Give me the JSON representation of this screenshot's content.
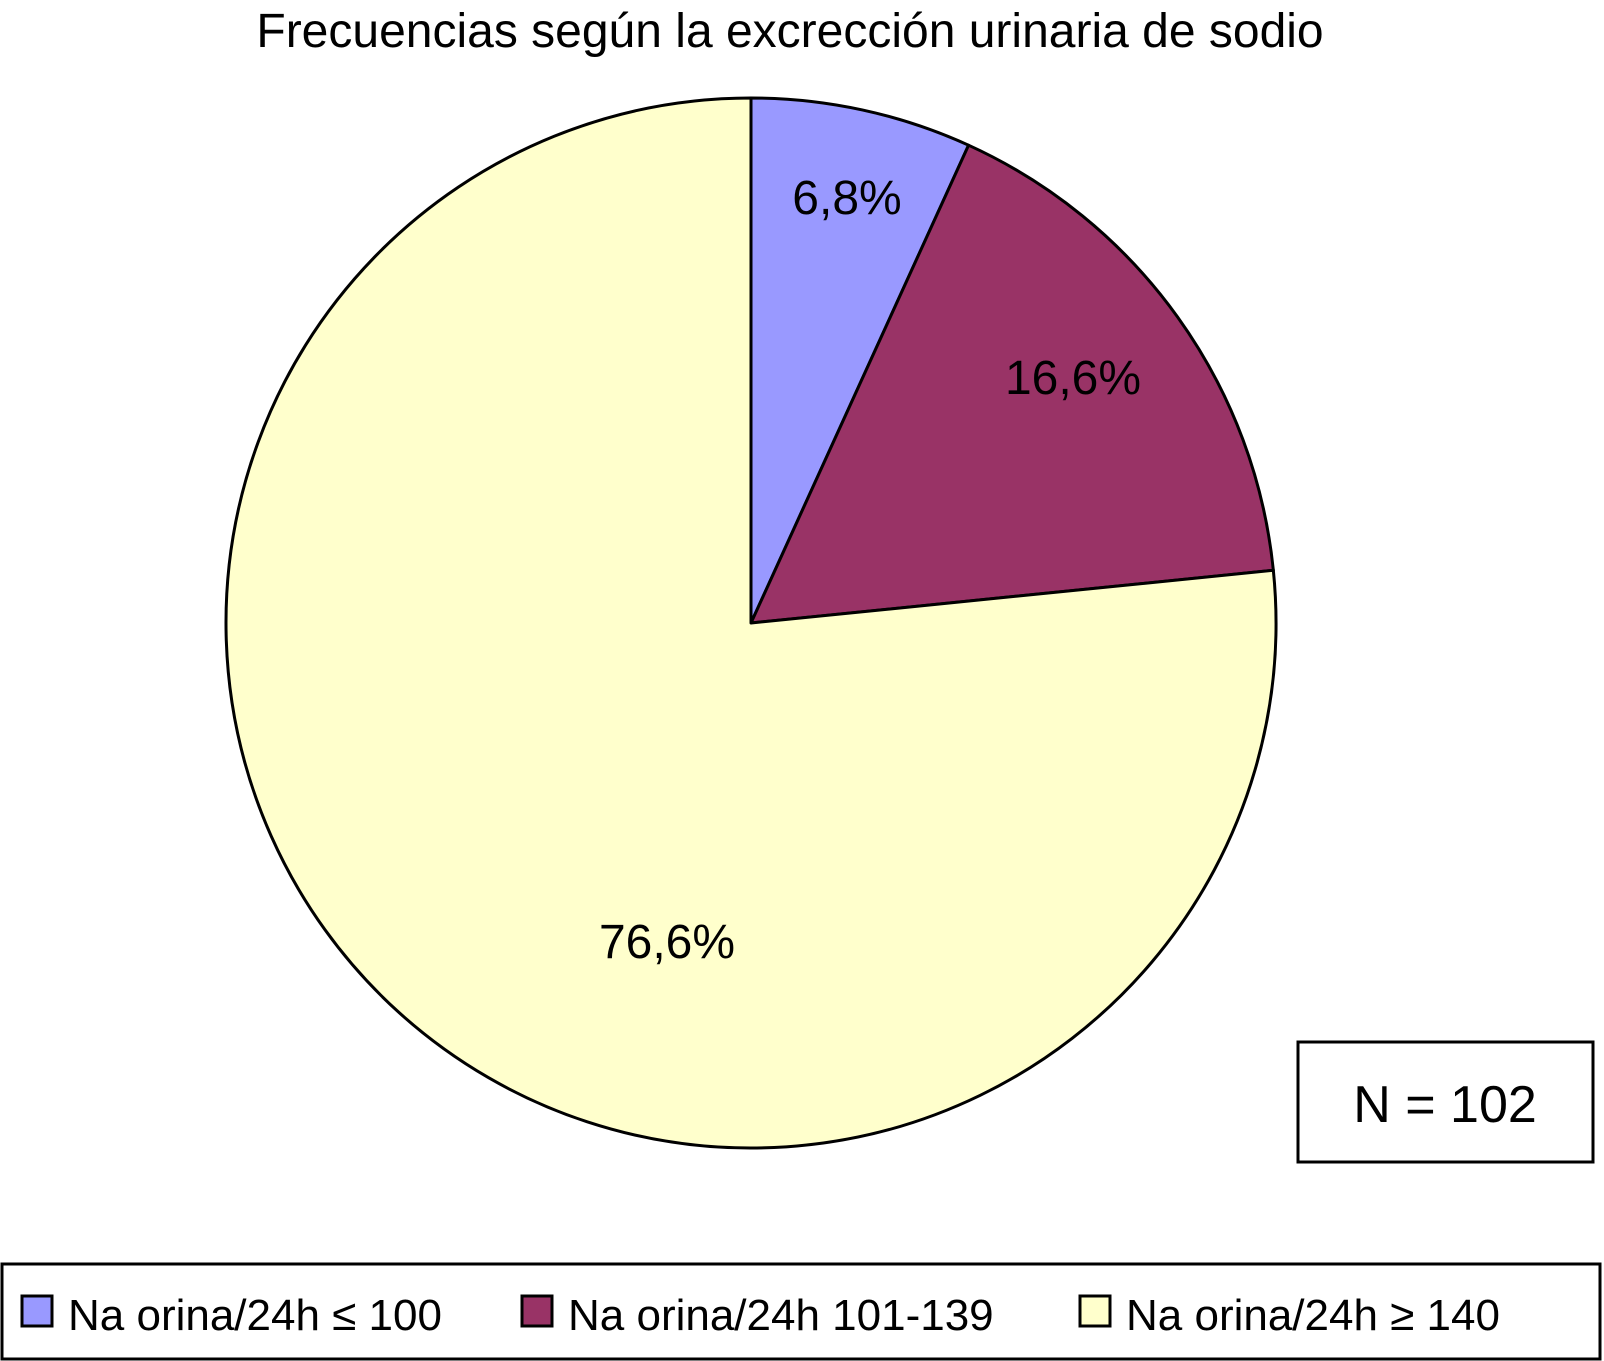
{
  "chart_data": {
    "type": "pie",
    "title": "Frecuencias según la excrección urinaria de sodio",
    "slices": [
      {
        "label": "Na orina/24h ≤ 100",
        "value": 6.8,
        "display": "6,8%",
        "color": "#9999ff"
      },
      {
        "label": "Na orina/24h 101-139",
        "value": 16.6,
        "display": "16,6%",
        "color": "#993366"
      },
      {
        "label": "Na orina/24h ≥ 140",
        "value": 76.6,
        "display": "76,6%",
        "color": "#ffffcc"
      }
    ],
    "legend_position": "bottom",
    "annotation": "N = 102"
  }
}
